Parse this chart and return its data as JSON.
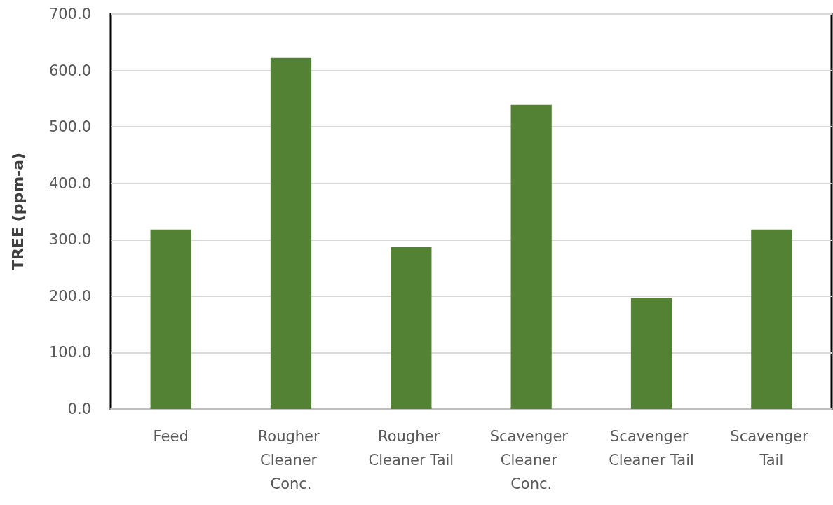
{
  "chart_data": {
    "type": "bar",
    "ylabel": "TREE (ppm-a)",
    "categories": [
      "Feed",
      "Rougher Cleaner Conc.",
      "Rougher Cleaner Tail",
      "Scavenger Cleaner Conc.",
      "Scavenger Cleaner Tail",
      "Scavenger Tail"
    ],
    "values": [
      318,
      622,
      287,
      539,
      197,
      318
    ],
    "color": "#548235",
    "ylim": [
      0,
      700
    ],
    "yticks": [
      {
        "value": 0,
        "label": "0.0"
      },
      {
        "value": 100,
        "label": "100.0"
      },
      {
        "value": 200,
        "label": "200.0"
      },
      {
        "value": 300,
        "label": "300.0"
      },
      {
        "value": 400,
        "label": "400.0"
      },
      {
        "value": 500,
        "label": "500.0"
      },
      {
        "value": 600,
        "label": "600.0"
      },
      {
        "value": 700,
        "label": "700.0"
      }
    ],
    "grid": "y"
  }
}
